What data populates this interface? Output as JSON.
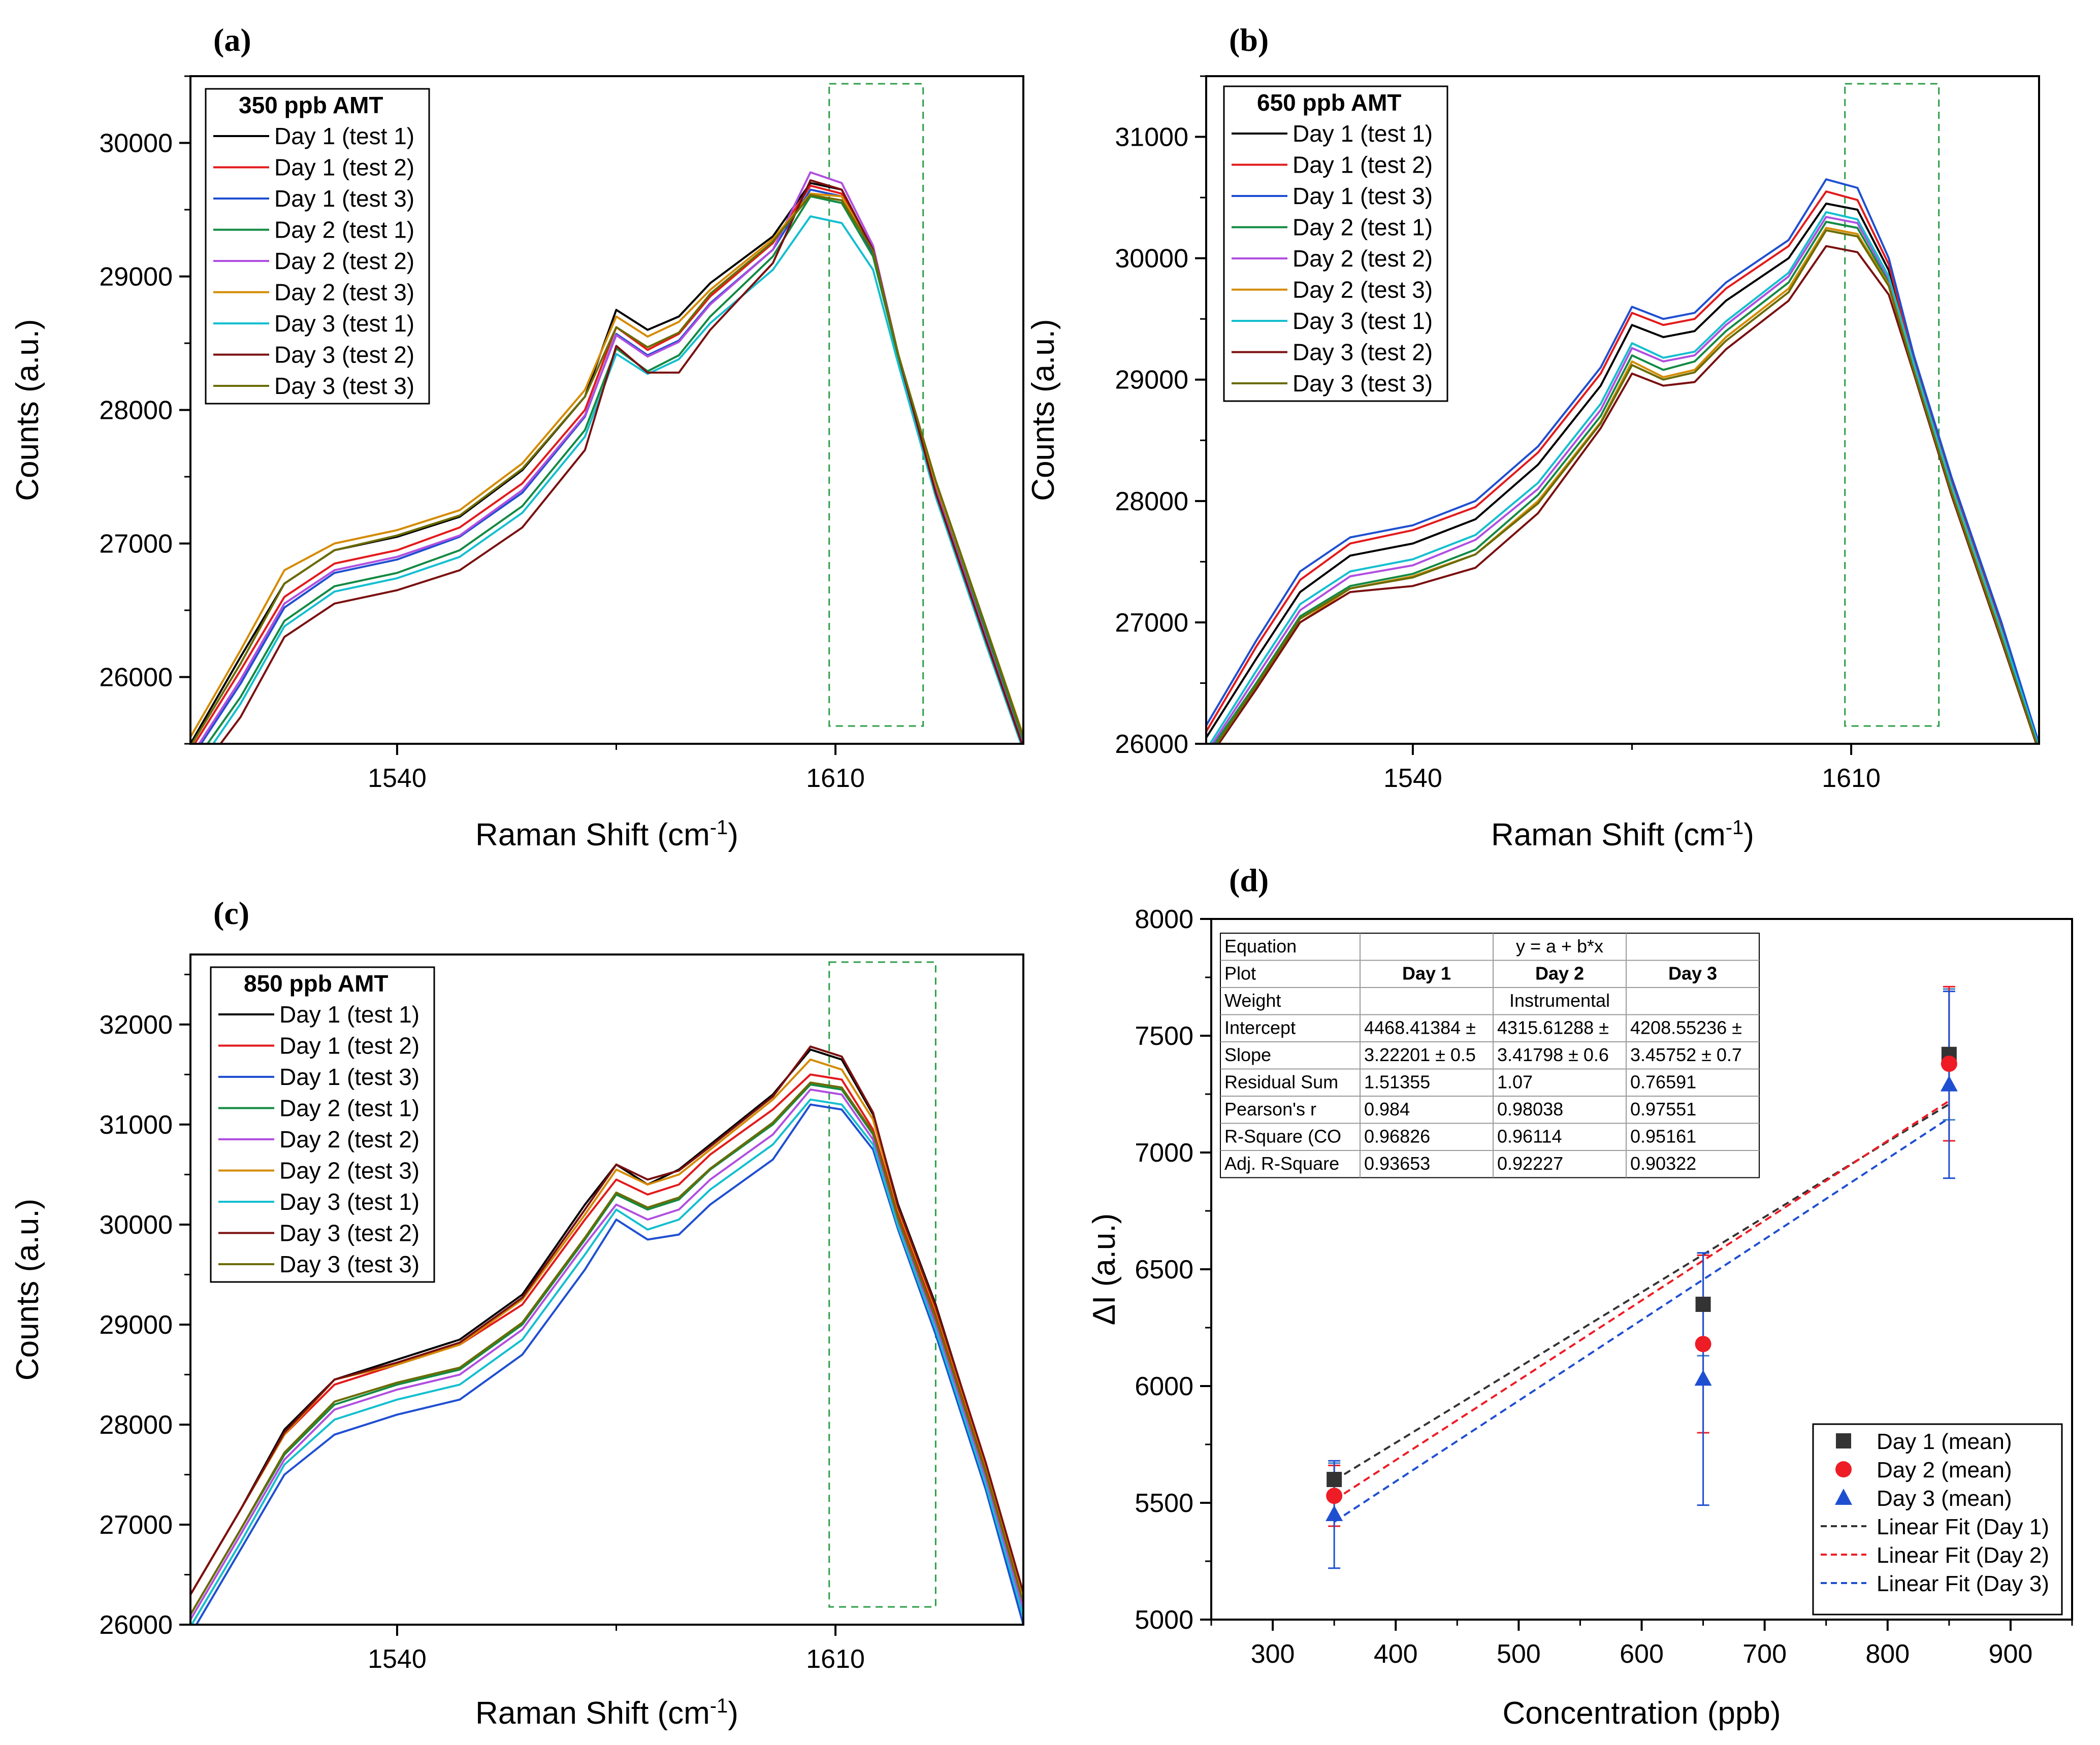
{
  "panels": {
    "a": {
      "label": "(a)"
    },
    "b": {
      "label": "(b)"
    },
    "c": {
      "label": "(c)"
    },
    "d": {
      "label": "(d)"
    }
  },
  "colors": {
    "series": [
      "#000000",
      "#e31a1c",
      "#1f4fd1",
      "#138a43",
      "#b04fe0",
      "#d48b00",
      "#14bfcf",
      "#7a1010",
      "#6b6b00"
    ],
    "highlight_box": "#2e9e48",
    "day1": "#333333",
    "day2": "#ee1c25",
    "day3": "#1f4fd1",
    "errorbar": "#3a7fc4"
  },
  "chart_data": [
    {
      "type": "line",
      "panel": "a",
      "legend_title": "350 ppb AMT",
      "xlabel": "Raman Shift (cm",
      "xlabel_sup": "-1",
      "xlabel_close": ")",
      "ylabel": "Counts (a.u.)",
      "xlim": [
        1507,
        1640
      ],
      "ylim": [
        25500,
        30500
      ],
      "xticks": [
        "1540",
        "1610"
      ],
      "yticks": [
        "26000",
        "27000",
        "28000",
        "29000",
        "30000"
      ],
      "highlight_range_x": [
        1609,
        1624
      ],
      "series_names": [
        "Day 1 (test 1)",
        "Day 1 (test 2)",
        "Day 1 (test 3)",
        "Day 2 (test 1)",
        "Day 2 (test 2)",
        "Day 2 (test 3)",
        "Day 3 (test 1)",
        "Day 3 (test 2)",
        "Day 3 (test 3)"
      ],
      "x": [
        1507,
        1515,
        1522,
        1530,
        1540,
        1550,
        1560,
        1570,
        1575,
        1580,
        1585,
        1590,
        1600,
        1606,
        1611,
        1616,
        1620,
        1626,
        1634,
        1640
      ],
      "series": [
        {
          "name": "Day 1 (test 1)",
          "values": [
            25500,
            26150,
            26700,
            26950,
            27050,
            27200,
            27550,
            28100,
            28750,
            28600,
            28700,
            28950,
            29300,
            29700,
            29650,
            29200,
            28400,
            27400,
            26300,
            25500
          ]
        },
        {
          "name": "Day 1 (test 2)",
          "values": [
            25450,
            26050,
            26600,
            26850,
            26950,
            27120,
            27450,
            28000,
            28620,
            28450,
            28570,
            28850,
            29250,
            29680,
            29620,
            29180,
            28400,
            27420,
            26330,
            25520
          ]
        },
        {
          "name": "Day 1 (test 3)",
          "values": [
            25380,
            25950,
            26520,
            26780,
            26880,
            27050,
            27380,
            27950,
            28570,
            28410,
            28520,
            28800,
            29200,
            29650,
            29600,
            29170,
            28400,
            27400,
            26300,
            25480
          ]
        },
        {
          "name": "Day 2 (test 1)",
          "values": [
            25320,
            25850,
            26420,
            26680,
            26780,
            26950,
            27280,
            27850,
            28460,
            28290,
            28410,
            28700,
            29150,
            29600,
            29550,
            29150,
            28400,
            27450,
            26350,
            25520
          ]
        },
        {
          "name": "Day 2 (test 2)",
          "values": [
            25400,
            25980,
            26550,
            26800,
            26900,
            27060,
            27400,
            27960,
            28560,
            28400,
            28510,
            28790,
            29200,
            29780,
            29700,
            29230,
            28420,
            27400,
            26300,
            25480
          ]
        },
        {
          "name": "Day 2 (test 3)",
          "values": [
            25550,
            26200,
            26800,
            27000,
            27100,
            27250,
            27600,
            28150,
            28700,
            28550,
            28660,
            28900,
            29280,
            29620,
            29600,
            29200,
            28420,
            27450,
            26380,
            25560
          ]
        },
        {
          "name": "Day 3 (test 1)",
          "values": [
            25250,
            25800,
            26380,
            26640,
            26740,
            26900,
            27230,
            27800,
            28420,
            28270,
            28380,
            28650,
            29050,
            29450,
            29400,
            29050,
            28350,
            27350,
            26250,
            25450
          ]
        },
        {
          "name": "Day 3 (test 2)",
          "values": [
            25200,
            25700,
            26300,
            26550,
            26650,
            26800,
            27120,
            27700,
            28480,
            28280,
            28280,
            28600,
            29100,
            29720,
            29650,
            29200,
            28420,
            27380,
            26280,
            25470
          ]
        },
        {
          "name": "Day 3 (test 3)",
          "values": [
            25480,
            26100,
            26700,
            26950,
            27060,
            27210,
            27560,
            28100,
            28620,
            28470,
            28580,
            28870,
            29260,
            29610,
            29570,
            29190,
            28420,
            27470,
            26380,
            25550
          ]
        }
      ]
    },
    {
      "type": "line",
      "panel": "b",
      "legend_title": "650 ppb AMT",
      "xlabel": "Raman Shift (cm",
      "xlabel_sup": "-1",
      "xlabel_close": ")",
      "ylabel": "Counts (a.u.)",
      "xlim": [
        1507,
        1640
      ],
      "ylim": [
        26000,
        31500
      ],
      "xticks": [
        "1540",
        "1610"
      ],
      "yticks": [
        "26000",
        "27000",
        "28000",
        "29000",
        "30000",
        "31000"
      ],
      "highlight_range_x": [
        1609,
        1624
      ],
      "series_names": [
        "Day 1 (test 1)",
        "Day 1 (test 2)",
        "Day 1 (test 3)",
        "Day 2 (test 1)",
        "Day 2 (test 2)",
        "Day 2 (test 3)",
        "Day 3 (test 1)",
        "Day 3 (test 2)",
        "Day 3 (test 3)"
      ],
      "x": [
        1507,
        1515,
        1522,
        1530,
        1540,
        1550,
        1560,
        1570,
        1575,
        1580,
        1585,
        1590,
        1600,
        1606,
        1611,
        1616,
        1620,
        1626,
        1634,
        1640
      ],
      "series": [
        {
          "name": "Day 1 (test 1)",
          "values": [
            26050,
            26700,
            27250,
            27550,
            27650,
            27850,
            28300,
            28950,
            29450,
            29350,
            29400,
            29650,
            30000,
            30450,
            30400,
            29900,
            29150,
            28150,
            26950,
            26000
          ]
        },
        {
          "name": "Day 1 (test 2)",
          "values": [
            26100,
            26800,
            27350,
            27650,
            27760,
            27950,
            28400,
            29050,
            29550,
            29450,
            29500,
            29750,
            30100,
            30550,
            30480,
            29950,
            29150,
            28150,
            26950,
            26000
          ]
        },
        {
          "name": "Day 1 (test 3)",
          "values": [
            26150,
            26850,
            27420,
            27700,
            27800,
            28000,
            28450,
            29100,
            29600,
            29500,
            29550,
            29800,
            30150,
            30650,
            30580,
            30000,
            29200,
            28200,
            27000,
            26000
          ]
        },
        {
          "name": "Day 2 (test 1)",
          "values": [
            25900,
            26500,
            27050,
            27300,
            27400,
            27600,
            28050,
            28700,
            29200,
            29080,
            29150,
            29400,
            29800,
            30300,
            30250,
            29800,
            29100,
            28100,
            26900,
            25950
          ]
        },
        {
          "name": "Day 2 (test 2)",
          "values": [
            25920,
            26550,
            27100,
            27380,
            27470,
            27680,
            28100,
            28750,
            29260,
            29150,
            29200,
            29450,
            29850,
            30340,
            30290,
            29830,
            29120,
            28120,
            26920,
            25960
          ]
        },
        {
          "name": "Day 2 (test 3)",
          "values": [
            25880,
            26450,
            27000,
            27280,
            27380,
            27560,
            28000,
            28650,
            29150,
            29020,
            29080,
            29350,
            29750,
            30250,
            30200,
            29780,
            29080,
            28080,
            26880,
            25940
          ]
        },
        {
          "name": "Day 3 (test 1)",
          "values": [
            25950,
            26600,
            27150,
            27420,
            27520,
            27720,
            28150,
            28800,
            29300,
            29180,
            29230,
            29480,
            29880,
            30380,
            30320,
            29850,
            29130,
            28130,
            26930,
            25970
          ]
        },
        {
          "name": "Day 3 (test 2)",
          "values": [
            25850,
            26450,
            27000,
            27250,
            27300,
            27450,
            27900,
            28600,
            29050,
            28950,
            28980,
            29250,
            29650,
            30100,
            30050,
            29700,
            29050,
            28050,
            26850,
            25930
          ]
        },
        {
          "name": "Day 3 (test 3)",
          "values": [
            25870,
            26480,
            27030,
            27280,
            27370,
            27560,
            27980,
            28640,
            29120,
            29000,
            29060,
            29320,
            29720,
            30230,
            30180,
            29770,
            29070,
            28070,
            26870,
            25940
          ]
        }
      ]
    },
    {
      "type": "line",
      "panel": "c",
      "legend_title": "850 ppb AMT",
      "xlabel": "Raman Shift (cm",
      "xlabel_sup": "-1",
      "xlabel_close": ")",
      "ylabel": "Counts (a.u.)",
      "xlim": [
        1507,
        1640
      ],
      "ylim": [
        26000,
        32700
      ],
      "xticks": [
        "1540",
        "1610"
      ],
      "yticks": [
        "26000",
        "27000",
        "28000",
        "29000",
        "30000",
        "31000",
        "32000"
      ],
      "highlight_range_x": [
        1609,
        1626
      ],
      "series_names": [
        "Day 1 (test 1)",
        "Day 1 (test 2)",
        "Day 1 (test 3)",
        "Day 2 (test 1)",
        "Day 2 (test 2)",
        "Day 2 (test 3)",
        "Day 3 (test 1)",
        "Day 3 (test 2)",
        "Day 3 (test 3)"
      ],
      "x": [
        1507,
        1515,
        1522,
        1530,
        1540,
        1550,
        1560,
        1570,
        1575,
        1580,
        1585,
        1590,
        1600,
        1606,
        1611,
        1616,
        1620,
        1626,
        1634,
        1640
      ],
      "series": [
        {
          "name": "Day 1 (test 1)",
          "values": [
            26300,
            27150,
            27950,
            28450,
            28650,
            28850,
            29300,
            30200,
            30600,
            30400,
            30550,
            30800,
            31300,
            31750,
            31650,
            31100,
            30200,
            29200,
            27600,
            26300
          ]
        },
        {
          "name": "Day 1 (test 2)",
          "values": [
            26300,
            27150,
            27900,
            28400,
            28600,
            28800,
            29200,
            30050,
            30450,
            30300,
            30400,
            30700,
            31150,
            31500,
            31450,
            30950,
            30100,
            29100,
            27550,
            26300
          ]
        },
        {
          "name": "Day 1 (test 3)",
          "values": [
            25900,
            26750,
            27500,
            27900,
            28100,
            28250,
            28700,
            29550,
            30050,
            29850,
            29900,
            30200,
            30650,
            31200,
            31150,
            30750,
            29950,
            28900,
            27350,
            26000
          ]
        },
        {
          "name": "Day 2 (test 1)",
          "values": [
            26100,
            26950,
            27700,
            28200,
            28400,
            28550,
            29000,
            29850,
            30300,
            30150,
            30250,
            30550,
            31000,
            31400,
            31350,
            30900,
            30050,
            29050,
            27500,
            26200
          ]
        },
        {
          "name": "Day 2 (test 2)",
          "values": [
            26050,
            26900,
            27650,
            28150,
            28350,
            28500,
            28950,
            29800,
            30200,
            30050,
            30150,
            30450,
            30900,
            31350,
            31300,
            30850,
            30000,
            29000,
            27450,
            26150
          ]
        },
        {
          "name": "Day 2 (test 3)",
          "values": [
            26300,
            27150,
            27900,
            28450,
            28600,
            28800,
            29250,
            30100,
            30550,
            30400,
            30500,
            30750,
            31250,
            31650,
            31550,
            31050,
            30150,
            29150,
            27600,
            26300
          ]
        },
        {
          "name": "Day 3 (test 1)",
          "values": [
            25980,
            26820,
            27600,
            28050,
            28250,
            28400,
            28850,
            29700,
            30150,
            29950,
            30050,
            30350,
            30800,
            31250,
            31200,
            30800,
            29980,
            28950,
            27400,
            26080
          ]
        },
        {
          "name": "Day 3 (test 2)",
          "values": [
            26300,
            27150,
            27920,
            28450,
            28620,
            28820,
            29270,
            30150,
            30600,
            30450,
            30540,
            30780,
            31280,
            31780,
            31680,
            31120,
            30180,
            29180,
            27620,
            26320
          ]
        },
        {
          "name": "Day 3 (test 3)",
          "values": [
            26100,
            26950,
            27720,
            28230,
            28420,
            28570,
            29020,
            29870,
            30320,
            30170,
            30270,
            30560,
            31020,
            31420,
            31370,
            30920,
            30060,
            29060,
            27520,
            26220
          ]
        }
      ]
    },
    {
      "type": "scatter",
      "panel": "d",
      "xlabel": "Concentration (ppb)",
      "ylabel": "ΔI (a.u.)",
      "xlim": [
        250,
        950
      ],
      "ylim": [
        5000,
        8000
      ],
      "xticks": [
        "300",
        "400",
        "500",
        "600",
        "700",
        "800",
        "900"
      ],
      "yticks": [
        "5000",
        "5500",
        "6000",
        "6500",
        "7000",
        "7500",
        "8000"
      ],
      "x": [
        350,
        650,
        850
      ],
      "series": [
        {
          "name": "Day 1 (mean)",
          "marker": "square",
          "values": [
            5600,
            6350,
            7420
          ],
          "err": [
            70,
            220,
            280
          ]
        },
        {
          "name": "Day 2 (mean)",
          "marker": "circle",
          "values": [
            5530,
            6180,
            7380
          ],
          "err": [
            130,
            380,
            330
          ]
        },
        {
          "name": "Day 3 (mean)",
          "marker": "triangle",
          "values": [
            5450,
            6030,
            7290
          ],
          "err": [
            230,
            540,
            400
          ]
        }
      ],
      "fits": [
        {
          "name": "Linear Fit (Day 1)",
          "intercept": 4468.41384,
          "slope": 3.22201
        },
        {
          "name": "Linear Fit (Day 2)",
          "intercept": 4315.61288,
          "slope": 3.41798
        },
        {
          "name": "Linear Fit (Day 3)",
          "intercept": 4208.55236,
          "slope": 3.45752
        }
      ],
      "fit_table": {
        "rows": [
          [
            "Equation",
            "y = a + b*x"
          ],
          [
            "Plot",
            "Day 1",
            "Day 2",
            "Day 3"
          ],
          [
            "Weight",
            "Instrumental"
          ],
          [
            "Intercept",
            "4468.41384 ±",
            "4315.61288 ±",
            "4208.55236 ±"
          ],
          [
            "Slope",
            "3.22201 ± 0.5",
            "3.41798 ± 0.6",
            "3.45752 ± 0.7"
          ],
          [
            "Residual Sum",
            "1.51355",
            "1.07",
            "0.76591"
          ],
          [
            "Pearson's r",
            "0.984",
            "0.98038",
            "0.97551"
          ],
          [
            "R-Square (CO",
            "0.96826",
            "0.96114",
            "0.95161"
          ],
          [
            "Adj. R-Square",
            "0.93653",
            "0.92227",
            "0.90322"
          ]
        ]
      }
    }
  ]
}
